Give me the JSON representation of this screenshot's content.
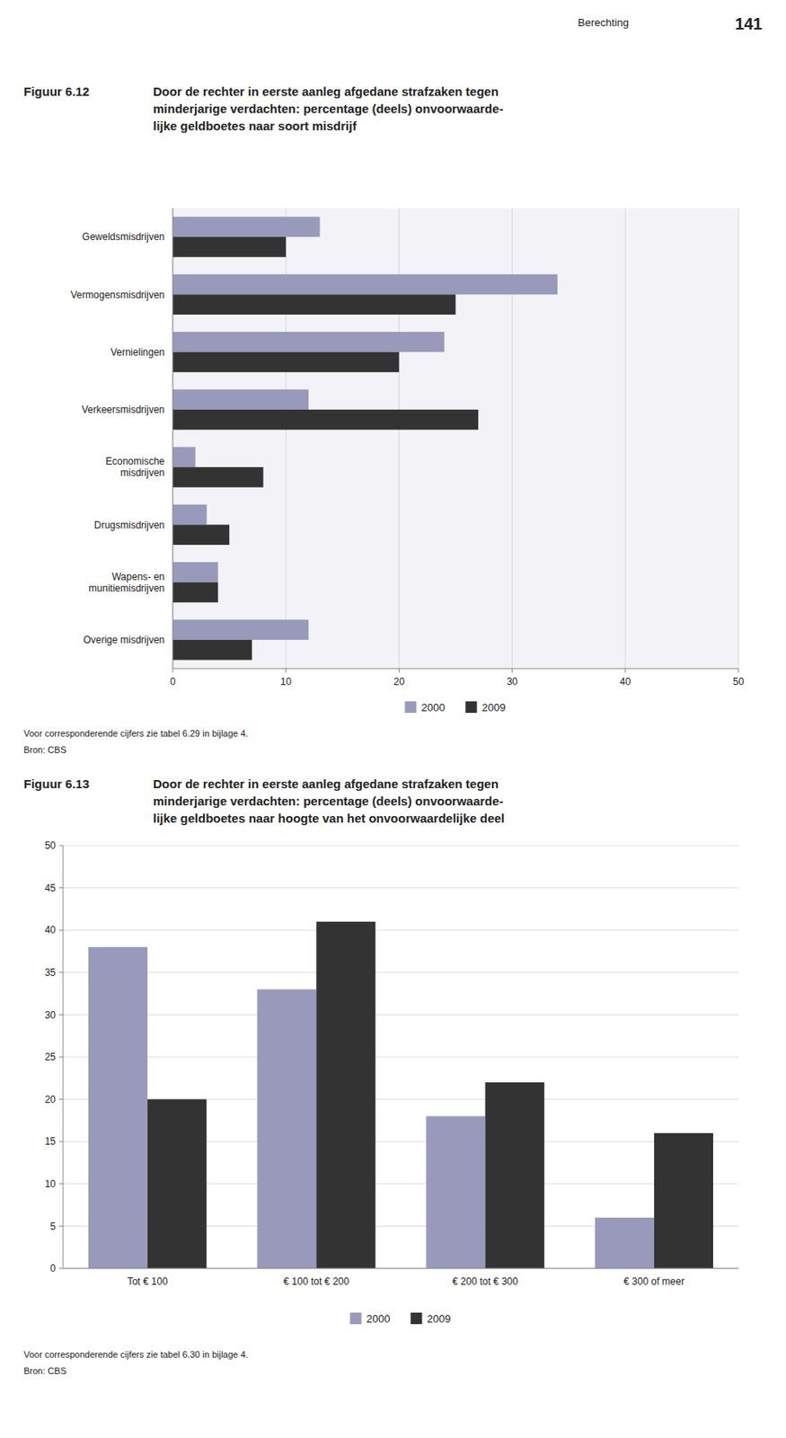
{
  "page_label": "Berechting",
  "page_number": "141",
  "chart_data": [
    {
      "type": "bar",
      "orientation": "horizontal",
      "title": "Door de rechter in eerste aanleg afgedane strafzaken tegen\nminderjarige verdachten: percentage (deels) onvoorwaarde-\nlijke geldboetes naar soort misdrijf",
      "annotations": [
        "Figuur 6.12",
        "Voor corresponderende cijfers zie tabel 6.29 in bijlage 4.",
        "Bron: CBS"
      ],
      "categories": [
        "Geweldsmisdrijven",
        "Vermogensmisdrijven",
        "Vernielingen",
        "Verkeersmisdrijven",
        "Economische\nmisdrijven",
        "Drugsmisdrijven",
        "Wapens- en\nmunitiemisdrijven",
        "Overige misdrijven"
      ],
      "series": [
        {
          "name": "2000",
          "color": "#9999bb",
          "values": [
            13,
            34,
            24,
            12,
            2,
            3,
            4,
            12
          ]
        },
        {
          "name": "2009",
          "color": "#333333",
          "values": [
            10,
            25,
            20,
            27,
            8,
            5,
            4,
            7
          ]
        }
      ],
      "xlim": [
        0,
        50
      ],
      "xticks": [
        0,
        10,
        20,
        30,
        40,
        50
      ],
      "grid": true,
      "legend": "bottom"
    },
    {
      "type": "bar",
      "title": "Door de rechter in eerste aanleg afgedane strafzaken tegen\nminderjarige verdachten: percentage (deels) onvoorwaarde-\nlijke geldboetes naar hoogte van het onvoorwaardelijke deel",
      "annotations": [
        "Figuur 6.13",
        "Voor corresponderende cijfers zie tabel 6.30 in bijlage 4.",
        "Bron: CBS"
      ],
      "categories": [
        "Tot € 100",
        "€ 100 tot € 200",
        "€ 200 tot € 300",
        "€ 300 of meer"
      ],
      "series": [
        {
          "name": "2000",
          "color": "#9999bb",
          "values": [
            38,
            33,
            18,
            6
          ]
        },
        {
          "name": "2009",
          "color": "#333333",
          "values": [
            20,
            41,
            22,
            16
          ]
        }
      ],
      "ylim": [
        0,
        50
      ],
      "yticks": [
        0,
        5,
        10,
        15,
        20,
        25,
        30,
        35,
        40,
        45,
        50
      ],
      "grid": true,
      "legend": "bottom"
    }
  ]
}
